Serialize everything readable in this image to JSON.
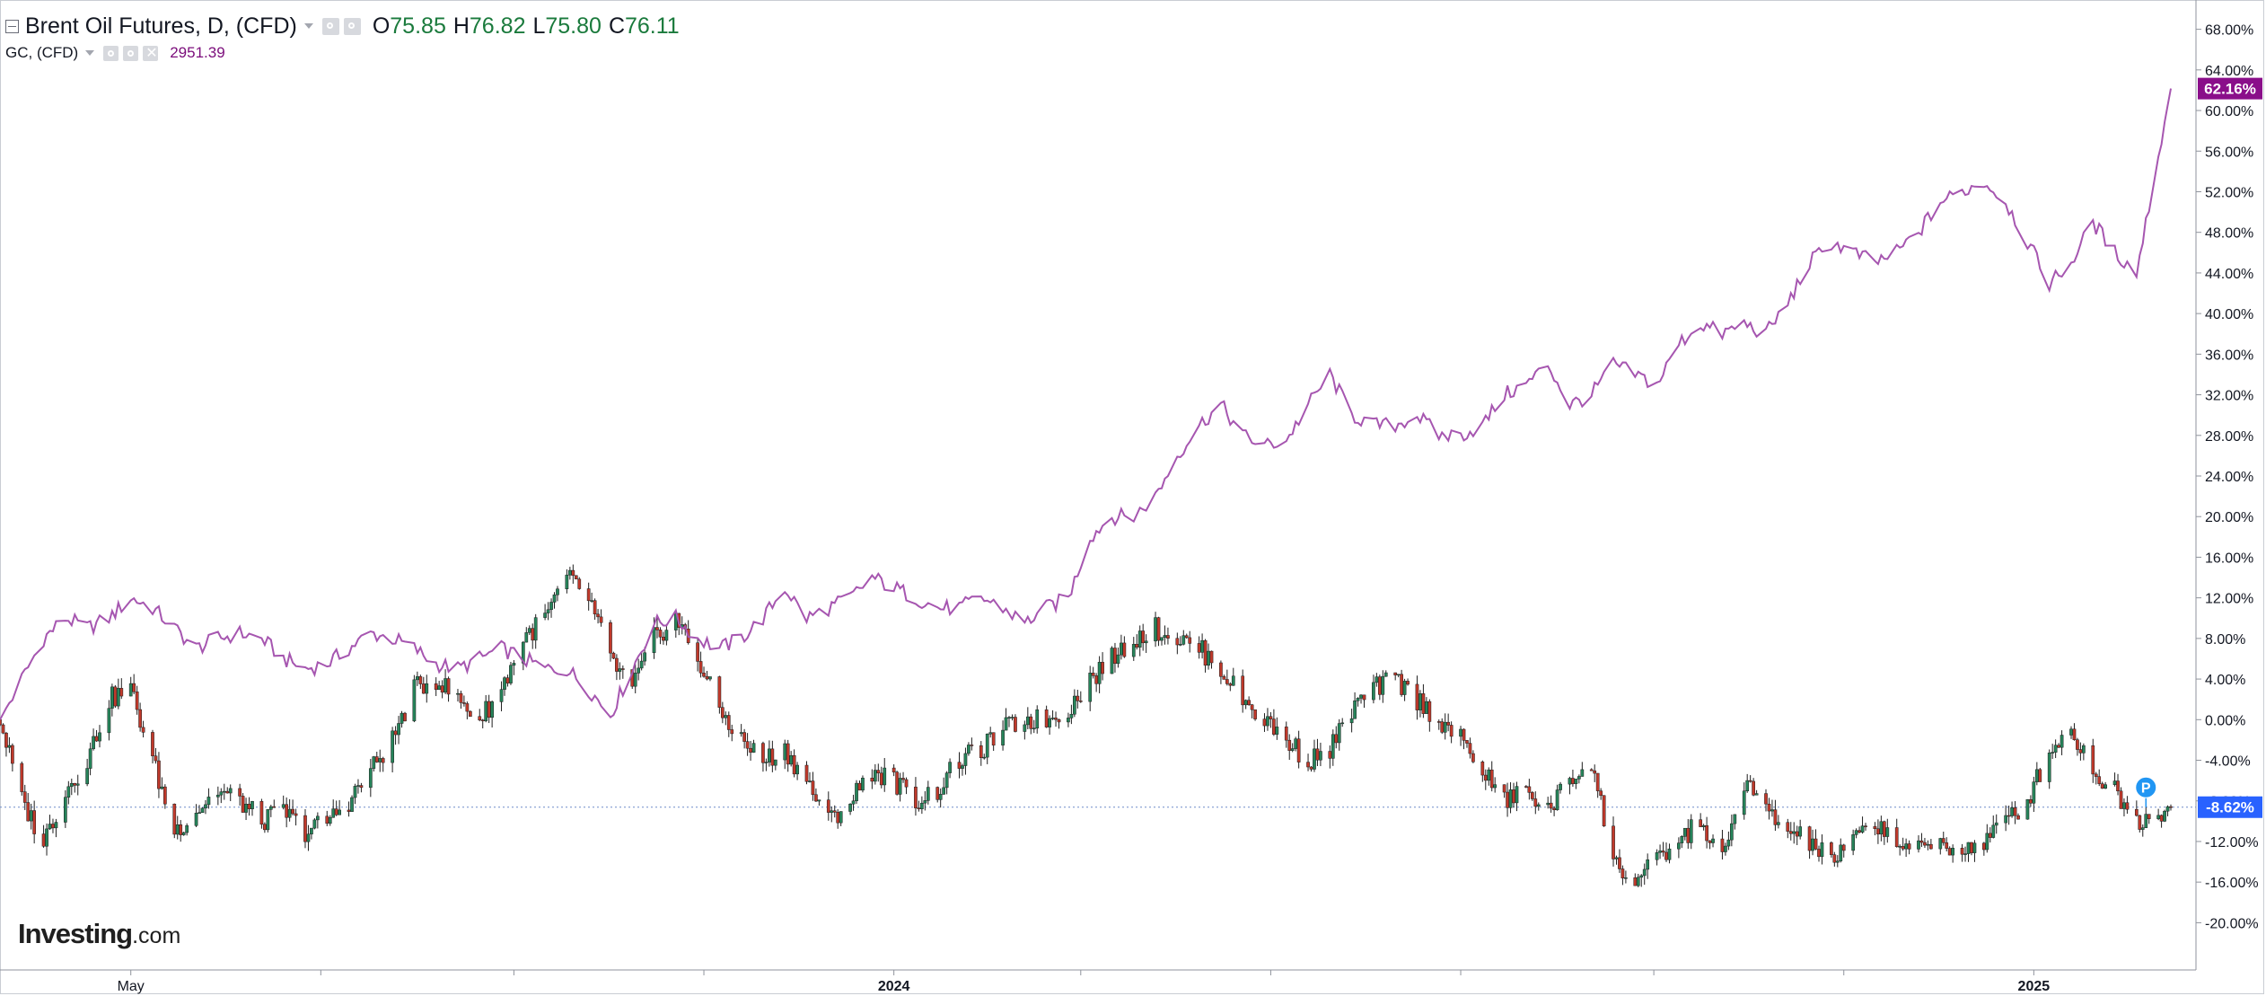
{
  "legend": {
    "primary_title": "Brent Oil Futures, D, (CFD)",
    "open_label": "O",
    "open": "75.85",
    "high_label": "H",
    "high": "76.82",
    "low_label": "L",
    "low": "75.80",
    "close_label": "C",
    "close": "76.11",
    "secondary_title": "GC, (CFD)",
    "secondary_value": "2951.39",
    "icons": [
      "settings-icon",
      "gear-icon",
      "close-icon"
    ]
  },
  "logo": {
    "brand": "Investing",
    "suffix": ".com"
  },
  "colors": {
    "up_candle": "#26845a",
    "down_candle": "#c0392b",
    "gold_line": "#a656b0",
    "gold_tag": "#8a0e8a",
    "oil_tag": "#2962ff",
    "price_line": "#6f8cc9",
    "marker": "#2196f3"
  },
  "chart_data": {
    "type": "line",
    "comparison": "percent change from start",
    "y_axis": {
      "range": [
        -22,
        70
      ],
      "ticks": [
        "68.00%",
        "64.00%",
        "60.00%",
        "56.00%",
        "52.00%",
        "48.00%",
        "44.00%",
        "40.00%",
        "36.00%",
        "32.00%",
        "28.00%",
        "24.00%",
        "20.00%",
        "16.00%",
        "12.00%",
        "8.00%",
        "4.00%",
        "0.00%",
        "-4.00%",
        "-8.00%",
        "-12.00%",
        "-16.00%",
        "-20.00%"
      ],
      "position": "right"
    },
    "x_axis": {
      "labels": [
        {
          "text": "May",
          "date": "2023-05-01",
          "bold": false
        },
        {
          "text": "2024",
          "date": "2024-01-01",
          "bold": true
        },
        {
          "text": "2025",
          "date": "2025-01-01",
          "bold": true
        }
      ],
      "start": "2023-03-20",
      "end": "2025-02-14"
    },
    "grid": false,
    "series": [
      {
        "name": "GC, (CFD)",
        "kind": "line",
        "last_tag": "62.16%",
        "points": [
          [
            "2023-03-20",
            0
          ],
          [
            "2023-03-27",
            4
          ],
          [
            "2023-04-03",
            8
          ],
          [
            "2023-04-10",
            10
          ],
          [
            "2023-04-17",
            9
          ],
          [
            "2023-04-24",
            10
          ],
          [
            "2023-05-01",
            12
          ],
          [
            "2023-05-08",
            11
          ],
          [
            "2023-05-15",
            9
          ],
          [
            "2023-05-22",
            7
          ],
          [
            "2023-05-29",
            8
          ],
          [
            "2023-06-05",
            8.5
          ],
          [
            "2023-06-12",
            8
          ],
          [
            "2023-06-19",
            6
          ],
          [
            "2023-06-26",
            5
          ],
          [
            "2023-07-03",
            5.5
          ],
          [
            "2023-07-10",
            7
          ],
          [
            "2023-07-17",
            8.5
          ],
          [
            "2023-07-24",
            8
          ],
          [
            "2023-07-31",
            7
          ],
          [
            "2023-08-07",
            5.5
          ],
          [
            "2023-08-14",
            5
          ],
          [
            "2023-08-21",
            6
          ],
          [
            "2023-08-28",
            7
          ],
          [
            "2023-09-04",
            6
          ],
          [
            "2023-09-11",
            5
          ],
          [
            "2023-09-18",
            5
          ],
          [
            "2023-09-25",
            3
          ],
          [
            "2023-10-02",
            0.5
          ],
          [
            "2023-10-09",
            5
          ],
          [
            "2023-10-16",
            9.5
          ],
          [
            "2023-10-23",
            10
          ],
          [
            "2023-10-30",
            8
          ],
          [
            "2023-11-06",
            7
          ],
          [
            "2023-11-13",
            8
          ],
          [
            "2023-11-20",
            10
          ],
          [
            "2023-11-27",
            13
          ],
          [
            "2023-12-04",
            10
          ],
          [
            "2023-12-11",
            11
          ],
          [
            "2023-12-18",
            12
          ],
          [
            "2023-12-25",
            14
          ],
          [
            "2024-01-01",
            13
          ],
          [
            "2024-01-08",
            12
          ],
          [
            "2024-01-15",
            11
          ],
          [
            "2024-01-22",
            11
          ],
          [
            "2024-01-29",
            12
          ],
          [
            "2024-02-05",
            11
          ],
          [
            "2024-02-12",
            9.5
          ],
          [
            "2024-02-19",
            11
          ],
          [
            "2024-02-26",
            12
          ],
          [
            "2024-03-04",
            18
          ],
          [
            "2024-03-11",
            20
          ],
          [
            "2024-03-18",
            20
          ],
          [
            "2024-03-25",
            22
          ],
          [
            "2024-04-01",
            26
          ],
          [
            "2024-04-08",
            29
          ],
          [
            "2024-04-15",
            31
          ],
          [
            "2024-04-22",
            28
          ],
          [
            "2024-04-29",
            27
          ],
          [
            "2024-05-06",
            27.5
          ],
          [
            "2024-05-13",
            31
          ],
          [
            "2024-05-20",
            34
          ],
          [
            "2024-05-27",
            30
          ],
          [
            "2024-06-03",
            29
          ],
          [
            "2024-06-10",
            29
          ],
          [
            "2024-06-17",
            30
          ],
          [
            "2024-06-24",
            28
          ],
          [
            "2024-07-01",
            28
          ],
          [
            "2024-07-08",
            29
          ],
          [
            "2024-07-15",
            32
          ],
          [
            "2024-07-22",
            33
          ],
          [
            "2024-07-29",
            35
          ],
          [
            "2024-08-05",
            31
          ],
          [
            "2024-08-12",
            32
          ],
          [
            "2024-08-19",
            35
          ],
          [
            "2024-08-26",
            34
          ],
          [
            "2024-09-02",
            33
          ],
          [
            "2024-09-09",
            37
          ],
          [
            "2024-09-16",
            39
          ],
          [
            "2024-09-23",
            38
          ],
          [
            "2024-09-30",
            39
          ],
          [
            "2024-10-07",
            38
          ],
          [
            "2024-10-14",
            41
          ],
          [
            "2024-10-21",
            45
          ],
          [
            "2024-10-28",
            47
          ],
          [
            "2024-11-04",
            46
          ],
          [
            "2024-11-11",
            45
          ],
          [
            "2024-11-18",
            46
          ],
          [
            "2024-11-25",
            48
          ],
          [
            "2024-12-02",
            51
          ],
          [
            "2024-12-09",
            52
          ],
          [
            "2024-12-16",
            53
          ],
          [
            "2024-12-23",
            51
          ],
          [
            "2024-12-30",
            47
          ],
          [
            "2025-01-06",
            43
          ],
          [
            "2025-01-13",
            45
          ],
          [
            "2025-01-20",
            49
          ],
          [
            "2025-01-27",
            46
          ],
          [
            "2025-02-03",
            44
          ],
          [
            "2025-02-14",
            62.16
          ]
        ]
      },
      {
        "name": "Brent Oil Futures, D, (CFD)",
        "kind": "candlestick",
        "last_tag": "-8.62%",
        "points": [
          [
            "2023-03-20",
            0
          ],
          [
            "2023-03-27",
            -8
          ],
          [
            "2023-04-03",
            -12
          ],
          [
            "2023-04-10",
            -7
          ],
          [
            "2023-04-17",
            -4
          ],
          [
            "2023-04-24",
            2
          ],
          [
            "2023-05-01",
            3
          ],
          [
            "2023-05-08",
            -4
          ],
          [
            "2023-05-15",
            -11
          ],
          [
            "2023-05-22",
            -9
          ],
          [
            "2023-05-29",
            -7
          ],
          [
            "2023-06-05",
            -8
          ],
          [
            "2023-06-12",
            -10
          ],
          [
            "2023-06-19",
            -9
          ],
          [
            "2023-06-26",
            -11
          ],
          [
            "2023-07-03",
            -10
          ],
          [
            "2023-07-10",
            -8
          ],
          [
            "2023-07-17",
            -5
          ],
          [
            "2023-07-24",
            -2
          ],
          [
            "2023-07-31",
            3
          ],
          [
            "2023-08-07",
            4
          ],
          [
            "2023-08-14",
            2
          ],
          [
            "2023-08-21",
            0
          ],
          [
            "2023-08-28",
            3
          ],
          [
            "2023-09-04",
            8
          ],
          [
            "2023-09-11",
            10
          ],
          [
            "2023-09-18",
            14
          ],
          [
            "2023-09-25",
            12
          ],
          [
            "2023-10-02",
            6
          ],
          [
            "2023-10-09",
            3
          ],
          [
            "2023-10-16",
            8
          ],
          [
            "2023-10-23",
            10
          ],
          [
            "2023-10-30",
            6
          ],
          [
            "2023-11-06",
            1
          ],
          [
            "2023-11-13",
            -2
          ],
          [
            "2023-11-20",
            -4
          ],
          [
            "2023-11-27",
            -3
          ],
          [
            "2023-12-04",
            -6
          ],
          [
            "2023-12-11",
            -10
          ],
          [
            "2023-12-18",
            -8
          ],
          [
            "2023-12-25",
            -5
          ],
          [
            "2024-01-01",
            -6
          ],
          [
            "2024-01-08",
            -8
          ],
          [
            "2024-01-15",
            -7
          ],
          [
            "2024-01-22",
            -4
          ],
          [
            "2024-01-29",
            -3
          ],
          [
            "2024-02-05",
            -1
          ],
          [
            "2024-02-12",
            0
          ],
          [
            "2024-02-19",
            0
          ],
          [
            "2024-02-26",
            1
          ],
          [
            "2024-03-04",
            4
          ],
          [
            "2024-03-11",
            6
          ],
          [
            "2024-03-18",
            8
          ],
          [
            "2024-03-25",
            9
          ],
          [
            "2024-04-01",
            8
          ],
          [
            "2024-04-08",
            7
          ],
          [
            "2024-04-15",
            5
          ],
          [
            "2024-04-22",
            2
          ],
          [
            "2024-04-29",
            0
          ],
          [
            "2024-05-06",
            -2
          ],
          [
            "2024-05-13",
            -4
          ],
          [
            "2024-05-20",
            -3
          ],
          [
            "2024-05-27",
            1
          ],
          [
            "2024-06-03",
            3
          ],
          [
            "2024-06-10",
            4
          ],
          [
            "2024-06-17",
            2
          ],
          [
            "2024-06-24",
            0
          ],
          [
            "2024-07-01",
            -2
          ],
          [
            "2024-07-08",
            -5
          ],
          [
            "2024-07-15",
            -8
          ],
          [
            "2024-07-22",
            -7
          ],
          [
            "2024-07-29",
            -9
          ],
          [
            "2024-08-05",
            -6
          ],
          [
            "2024-08-12",
            -4
          ],
          [
            "2024-08-19",
            -14
          ],
          [
            "2024-08-26",
            -16
          ],
          [
            "2024-09-02",
            -14
          ],
          [
            "2024-09-09",
            -12
          ],
          [
            "2024-09-16",
            -10
          ],
          [
            "2024-09-23",
            -14
          ],
          [
            "2024-09-30",
            -6
          ],
          [
            "2024-10-07",
            -9
          ],
          [
            "2024-10-14",
            -11
          ],
          [
            "2024-10-21",
            -12
          ],
          [
            "2024-10-28",
            -14
          ],
          [
            "2024-11-04",
            -12
          ],
          [
            "2024-11-11",
            -10
          ],
          [
            "2024-11-18",
            -12
          ],
          [
            "2024-11-25",
            -13
          ],
          [
            "2024-12-02",
            -12
          ],
          [
            "2024-12-09",
            -13
          ],
          [
            "2024-12-16",
            -12
          ],
          [
            "2024-12-23",
            -10
          ],
          [
            "2024-12-30",
            -8
          ],
          [
            "2025-01-06",
            -3
          ],
          [
            "2025-01-13",
            -1
          ],
          [
            "2025-01-20",
            -5
          ],
          [
            "2025-01-27",
            -7
          ],
          [
            "2025-02-03",
            -10
          ],
          [
            "2025-02-14",
            -8.62
          ]
        ]
      }
    ]
  }
}
